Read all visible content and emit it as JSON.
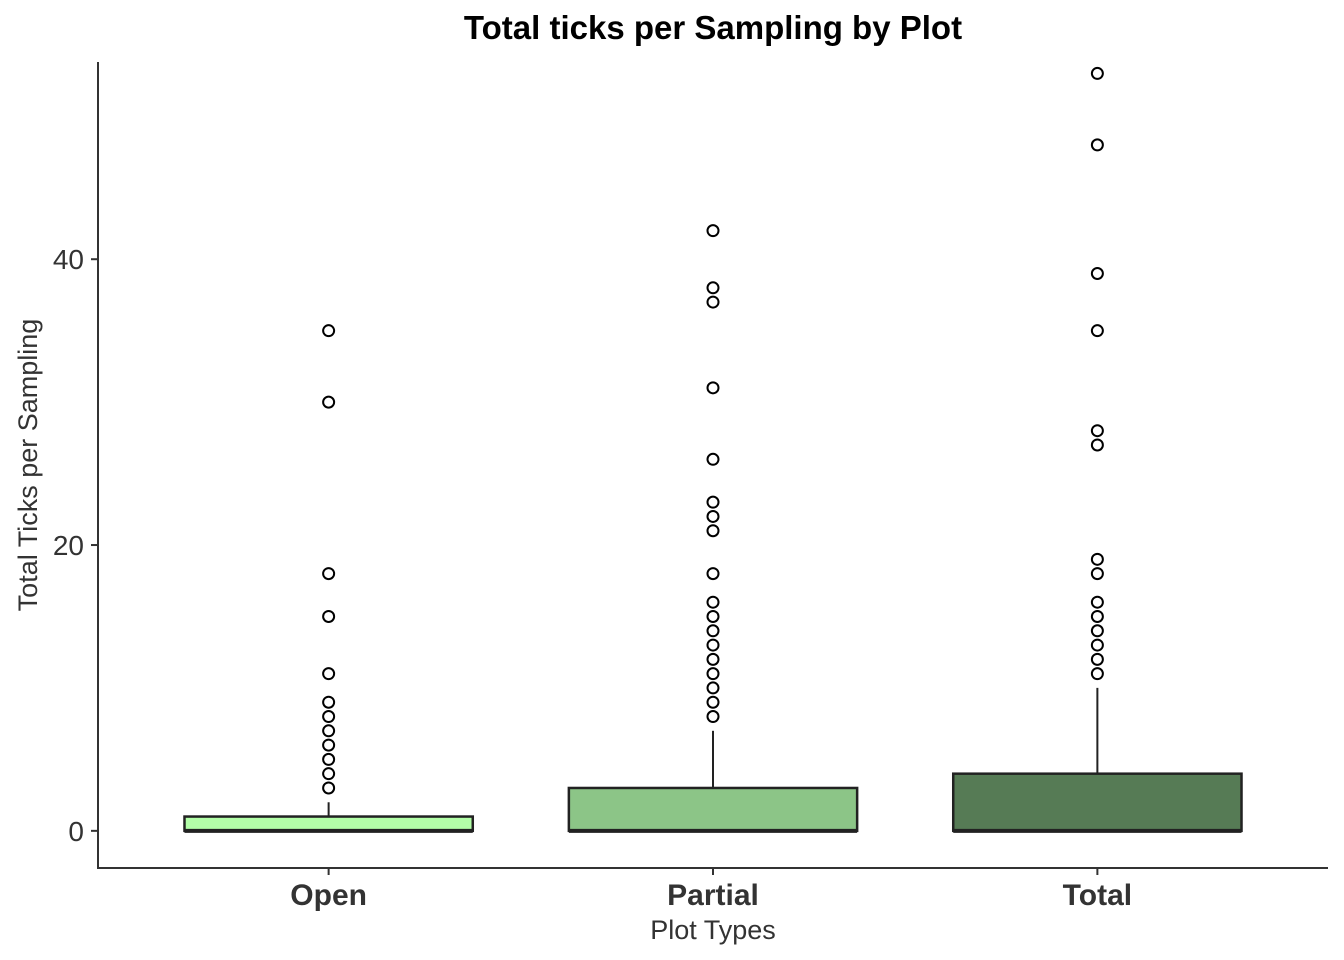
{
  "chart_data": {
    "type": "boxplot",
    "title": "Total ticks per Sampling by Plot",
    "xlabel": "Plot Types",
    "ylabel": "Total Ticks per Sampling",
    "ylim": [
      -2.6,
      53.8
    ],
    "yticks": [
      0,
      20,
      40
    ],
    "grid": false,
    "legend": "none",
    "categories": [
      "Open",
      "Partial",
      "Total"
    ],
    "boxes": [
      {
        "category": "Open",
        "fill": "#b3ffa8",
        "min": 0,
        "q1": 0,
        "median": 0,
        "q3": 1,
        "max": 2,
        "outliers": [
          3,
          4,
          5,
          6,
          7,
          8,
          9,
          11,
          15,
          18,
          30,
          35
        ]
      },
      {
        "category": "Partial",
        "fill": "#8cc587",
        "min": 0,
        "q1": 0,
        "median": 0,
        "q3": 3,
        "max": 7,
        "outliers": [
          8,
          9,
          10,
          11,
          12,
          13,
          14,
          15,
          16,
          18,
          21,
          22,
          23,
          26,
          31,
          37,
          38,
          42
        ]
      },
      {
        "category": "Total",
        "fill": "#567b55",
        "min": 0,
        "q1": 0,
        "median": 0,
        "q3": 4,
        "max": 10,
        "outliers": [
          11,
          12,
          13,
          14,
          15,
          16,
          18,
          19,
          27,
          28,
          35,
          39,
          48,
          53
        ]
      }
    ]
  }
}
